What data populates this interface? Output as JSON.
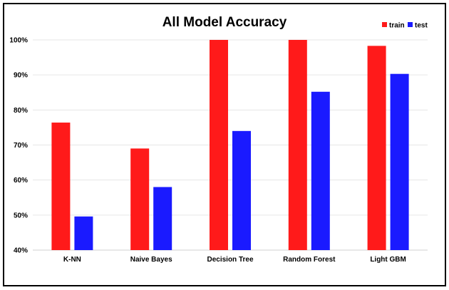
{
  "chart_data": {
    "type": "bar",
    "title": "All Model Accuracy",
    "categories": [
      "K-NN",
      "Naive Bayes",
      "Decision Tree",
      "Random Forest",
      "Light GBM"
    ],
    "series": [
      {
        "name": "train",
        "values": [
          76.4,
          69.0,
          100.0,
          100.0,
          98.3
        ],
        "color": "#ff1a1a"
      },
      {
        "name": "test",
        "values": [
          49.6,
          58.0,
          74.0,
          85.2,
          90.3
        ],
        "color": "#1a1aff"
      }
    ],
    "ylim": [
      40,
      100
    ],
    "yticks": [
      40,
      50,
      60,
      70,
      80,
      90,
      100
    ],
    "ytick_labels": [
      "40%",
      "50%",
      "60%",
      "70%",
      "80%",
      "90%",
      "100%"
    ],
    "xlabel": "",
    "ylabel": "",
    "grid": true,
    "legend_position": "top-right"
  }
}
